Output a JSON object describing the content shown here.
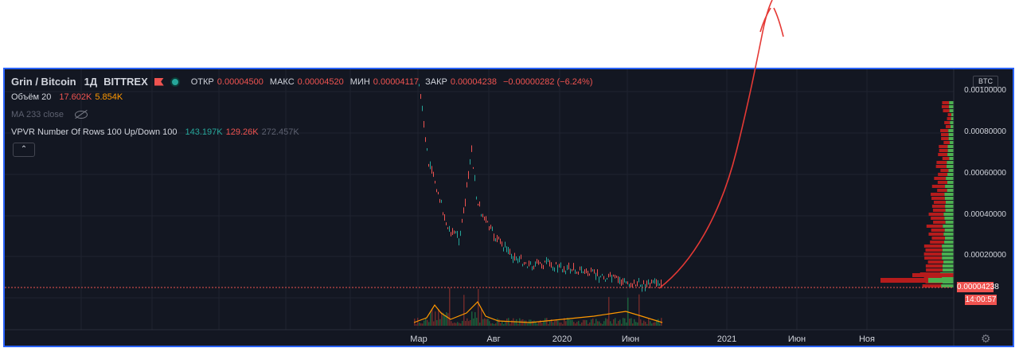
{
  "header": {
    "symbol": "Grin / Bitcoin",
    "interval": "1Д",
    "exchange": "BITTREX",
    "ohlc": {
      "open_label": "ОТКР",
      "open": "0.00004500",
      "high_label": "МАКС",
      "high": "0.00004520",
      "low_label": "МИН",
      "low": "0.00004117",
      "close_label": "ЗАКР",
      "close": "0.00004238",
      "change": "−0.00000282 (−6.24%)"
    }
  },
  "indicators": {
    "volume": {
      "label": "Объём 20",
      "val1": "17.602K",
      "val2": "5.854K"
    },
    "ma": {
      "label": "MA 233 close"
    },
    "vpvr": {
      "label": "VPVR Number Of Rows 100 Up/Down 100",
      "up": "143.197K",
      "down": "129.26K",
      "total": "272.457K"
    },
    "collapse_glyph": "⌃"
  },
  "price_axis": {
    "currency": "BTC",
    "labels": [
      "0.00100000",
      "0.00080000",
      "0.00060000",
      "0.00040000",
      "0.00020000"
    ],
    "current_price": "0.00004238",
    "countdown": "14:00:57"
  },
  "time_axis": {
    "labels": [
      "Мар",
      "Авг",
      "2020",
      "Июн",
      "2021",
      "Июн",
      "Ноя"
    ]
  },
  "colors": {
    "up": "#26a69a",
    "down": "#ef5350",
    "background": "#131722",
    "frame": "#2962ff",
    "vpvr_up": "#4caf50",
    "vpvr_down": "#b71c1c"
  },
  "settings_icon": "gear-icon"
}
